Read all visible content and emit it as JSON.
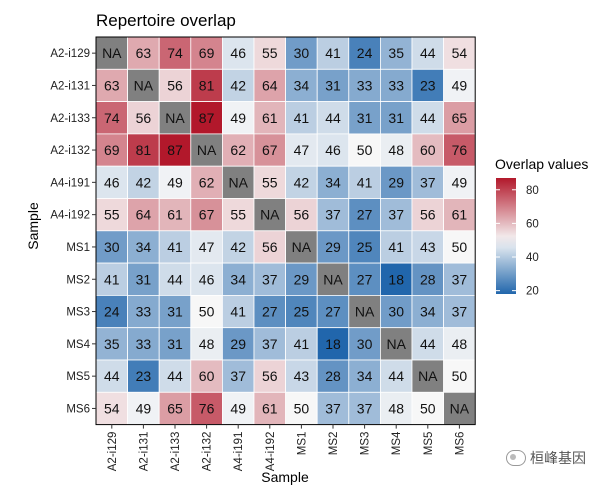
{
  "chart_data": {
    "type": "heatmap",
    "title": "Repertoire overlap",
    "xlabel": "Sample",
    "ylabel": "Sample",
    "samples": [
      "A2-i129",
      "A2-i131",
      "A2-i133",
      "A2-i132",
      "A4-i191",
      "A4-i192",
      "MS1",
      "MS2",
      "MS3",
      "MS4",
      "MS5",
      "MS6"
    ],
    "values": [
      [
        null,
        63,
        74,
        69,
        46,
        55,
        30,
        41,
        24,
        35,
        44,
        54
      ],
      [
        63,
        null,
        56,
        81,
        42,
        64,
        34,
        31,
        33,
        33,
        23,
        49
      ],
      [
        74,
        56,
        null,
        87,
        49,
        61,
        41,
        44,
        31,
        31,
        44,
        65
      ],
      [
        69,
        81,
        87,
        null,
        62,
        67,
        47,
        46,
        50,
        48,
        60,
        76
      ],
      [
        46,
        42,
        49,
        62,
        null,
        55,
        42,
        34,
        41,
        29,
        37,
        49
      ],
      [
        55,
        64,
        61,
        67,
        55,
        null,
        56,
        37,
        27,
        37,
        56,
        61
      ],
      [
        30,
        34,
        41,
        47,
        42,
        56,
        null,
        29,
        25,
        41,
        43,
        50
      ],
      [
        41,
        31,
        44,
        46,
        34,
        37,
        29,
        null,
        27,
        18,
        28,
        37
      ],
      [
        24,
        33,
        31,
        50,
        41,
        27,
        25,
        27,
        null,
        30,
        34,
        37
      ],
      [
        35,
        33,
        31,
        48,
        29,
        37,
        41,
        18,
        30,
        null,
        44,
        48
      ],
      [
        44,
        23,
        44,
        60,
        37,
        56,
        43,
        28,
        34,
        44,
        null,
        50
      ],
      [
        54,
        49,
        65,
        76,
        49,
        61,
        50,
        37,
        37,
        48,
        50,
        null
      ]
    ],
    "na_label": "NA",
    "legend": {
      "title": "Overlap values",
      "ticks": [
        20,
        40,
        60,
        80
      ],
      "range": [
        18,
        87
      ],
      "midpoint": 50
    },
    "colors": {
      "low": "#2166ac",
      "mid": "#f7f7f7",
      "high": "#b2182b",
      "na": "#808080",
      "border": "#000000"
    }
  },
  "watermark": "桓峰基因"
}
